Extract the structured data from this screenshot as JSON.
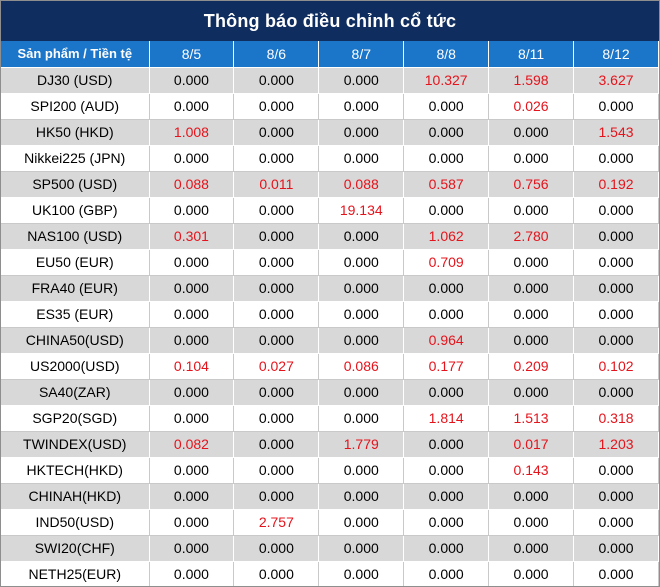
{
  "title": "Thông báo điều chỉnh cổ tức",
  "header": {
    "first_col": "Sản phẩm / Tiền tệ",
    "dates": [
      "8/5",
      "8/6",
      "8/7",
      "8/8",
      "8/11",
      "8/12"
    ]
  },
  "highlight_color": "#e5131b",
  "rows": [
    {
      "product": "DJ30 (USD)",
      "values": [
        "0.000",
        "0.000",
        "0.000",
        "10.327",
        "1.598",
        "3.627"
      ]
    },
    {
      "product": "SPI200 (AUD)",
      "values": [
        "0.000",
        "0.000",
        "0.000",
        "0.000",
        "0.026",
        "0.000"
      ]
    },
    {
      "product": "HK50 (HKD)",
      "values": [
        "1.008",
        "0.000",
        "0.000",
        "0.000",
        "0.000",
        "1.543"
      ]
    },
    {
      "product": "Nikkei225 (JPN)",
      "values": [
        "0.000",
        "0.000",
        "0.000",
        "0.000",
        "0.000",
        "0.000"
      ]
    },
    {
      "product": "SP500 (USD)",
      "values": [
        "0.088",
        "0.011",
        "0.088",
        "0.587",
        "0.756",
        "0.192"
      ]
    },
    {
      "product": "UK100 (GBP)",
      "values": [
        "0.000",
        "0.000",
        "19.134",
        "0.000",
        "0.000",
        "0.000"
      ]
    },
    {
      "product": "NAS100 (USD)",
      "values": [
        "0.301",
        "0.000",
        "0.000",
        "1.062",
        "2.780",
        "0.000"
      ]
    },
    {
      "product": "EU50 (EUR)",
      "values": [
        "0.000",
        "0.000",
        "0.000",
        "0.709",
        "0.000",
        "0.000"
      ]
    },
    {
      "product": "FRA40 (EUR)",
      "values": [
        "0.000",
        "0.000",
        "0.000",
        "0.000",
        "0.000",
        "0.000"
      ]
    },
    {
      "product": "ES35 (EUR)",
      "values": [
        "0.000",
        "0.000",
        "0.000",
        "0.000",
        "0.000",
        "0.000"
      ]
    },
    {
      "product": "CHINA50(USD)",
      "values": [
        "0.000",
        "0.000",
        "0.000",
        "0.964",
        "0.000",
        "0.000"
      ]
    },
    {
      "product": "US2000(USD)",
      "values": [
        "0.104",
        "0.027",
        "0.086",
        "0.177",
        "0.209",
        "0.102"
      ]
    },
    {
      "product": "SA40(ZAR)",
      "values": [
        "0.000",
        "0.000",
        "0.000",
        "0.000",
        "0.000",
        "0.000"
      ]
    },
    {
      "product": "SGP20(SGD)",
      "values": [
        "0.000",
        "0.000",
        "0.000",
        "1.814",
        "1.513",
        "0.318"
      ]
    },
    {
      "product": "TWINDEX(USD)",
      "values": [
        "0.082",
        "0.000",
        "1.779",
        "0.000",
        "0.017",
        "1.203"
      ]
    },
    {
      "product": "HKTECH(HKD)",
      "values": [
        "0.000",
        "0.000",
        "0.000",
        "0.000",
        "0.143",
        "0.000"
      ]
    },
    {
      "product": "CHINAH(HKD)",
      "values": [
        "0.000",
        "0.000",
        "0.000",
        "0.000",
        "0.000",
        "0.000"
      ]
    },
    {
      "product": "IND50(USD)",
      "values": [
        "0.000",
        "2.757",
        "0.000",
        "0.000",
        "0.000",
        "0.000"
      ]
    },
    {
      "product": "SWI20(CHF)",
      "values": [
        "0.000",
        "0.000",
        "0.000",
        "0.000",
        "0.000",
        "0.000"
      ]
    },
    {
      "product": "NETH25(EUR)",
      "values": [
        "0.000",
        "0.000",
        "0.000",
        "0.000",
        "0.000",
        "0.000"
      ]
    }
  ]
}
